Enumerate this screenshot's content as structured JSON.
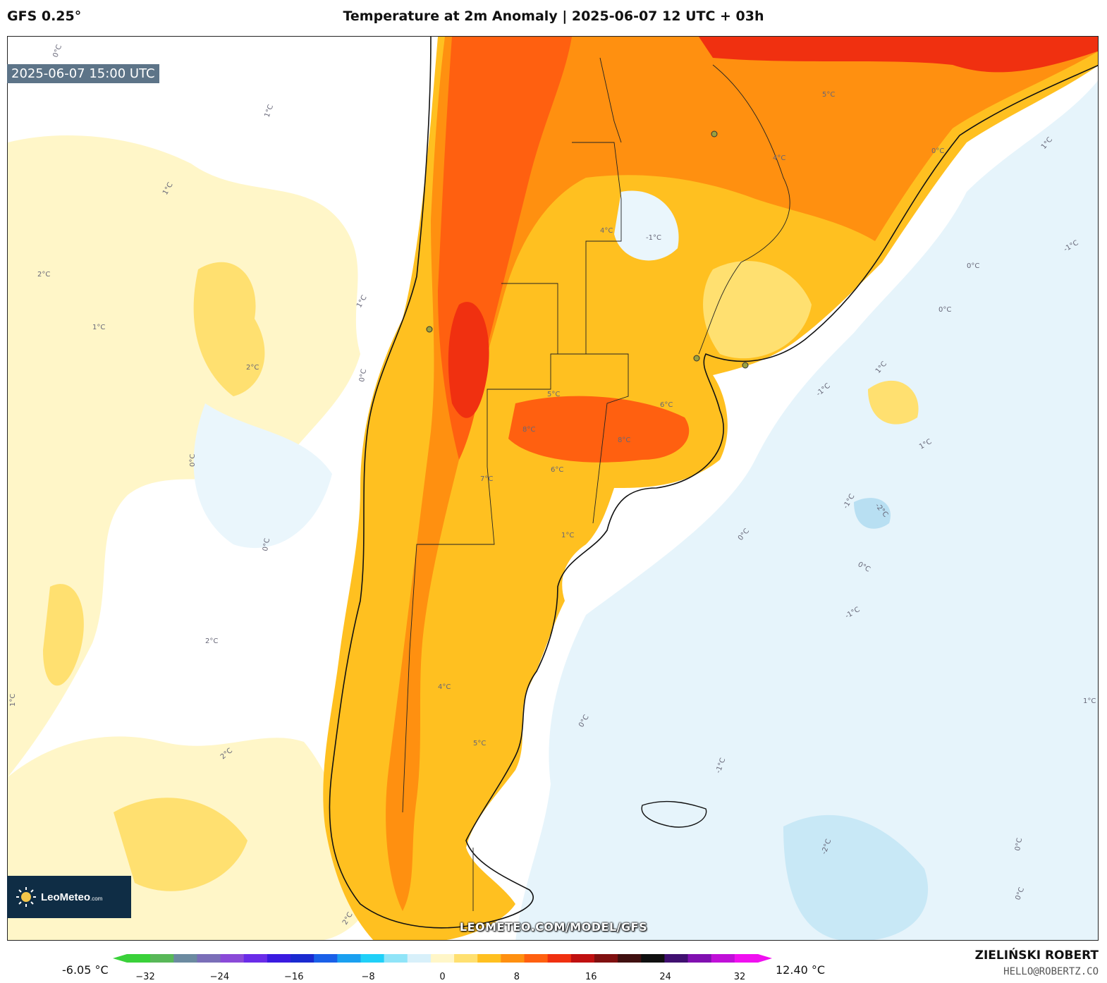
{
  "header": {
    "model": "GFS 0.25°",
    "title": "Temperature at 2m Anomaly | 2025-06-07 12 UTC + 03h"
  },
  "map": {
    "valid_time": "2025-06-07 15:00 UTC",
    "website": "LEOMETEO.COM/MODEL/GFS",
    "contour_labels": [
      "0°C",
      "1°C",
      "2°C",
      "-1°C",
      "4°C",
      "5°C",
      "6°C",
      "7°C",
      "8°C",
      "-2°C",
      "3°C"
    ]
  },
  "logo": {
    "name": "LeoMeteo",
    "name_suffix": ".com"
  },
  "colorbar": {
    "min_label": "-6.05 °C",
    "max_label": "12.40 °C",
    "ticks": [
      "−32",
      "−24",
      "−16",
      "−8",
      "0",
      "8",
      "16",
      "24",
      "32"
    ],
    "colors": [
      "#3ad13a",
      "#58b858",
      "#6b8aa0",
      "#7a6eb8",
      "#8a4ad8",
      "#6a2ce8",
      "#3a1ae0",
      "#1a2ad0",
      "#1a60e8",
      "#1aa0f0",
      "#20d0f8",
      "#90e4f8",
      "#d8f0fa",
      "#fff6c8",
      "#ffe070",
      "#ffc020",
      "#ff9010",
      "#ff6010",
      "#f03010",
      "#c01010",
      "#801010",
      "#401010",
      "#101010",
      "#401070",
      "#8010b0",
      "#c010d8",
      "#f010f0"
    ]
  },
  "credits": {
    "author": "ZIELIŃSKI ROBERT",
    "email": "HELLO@ROBERTZ.CO"
  }
}
